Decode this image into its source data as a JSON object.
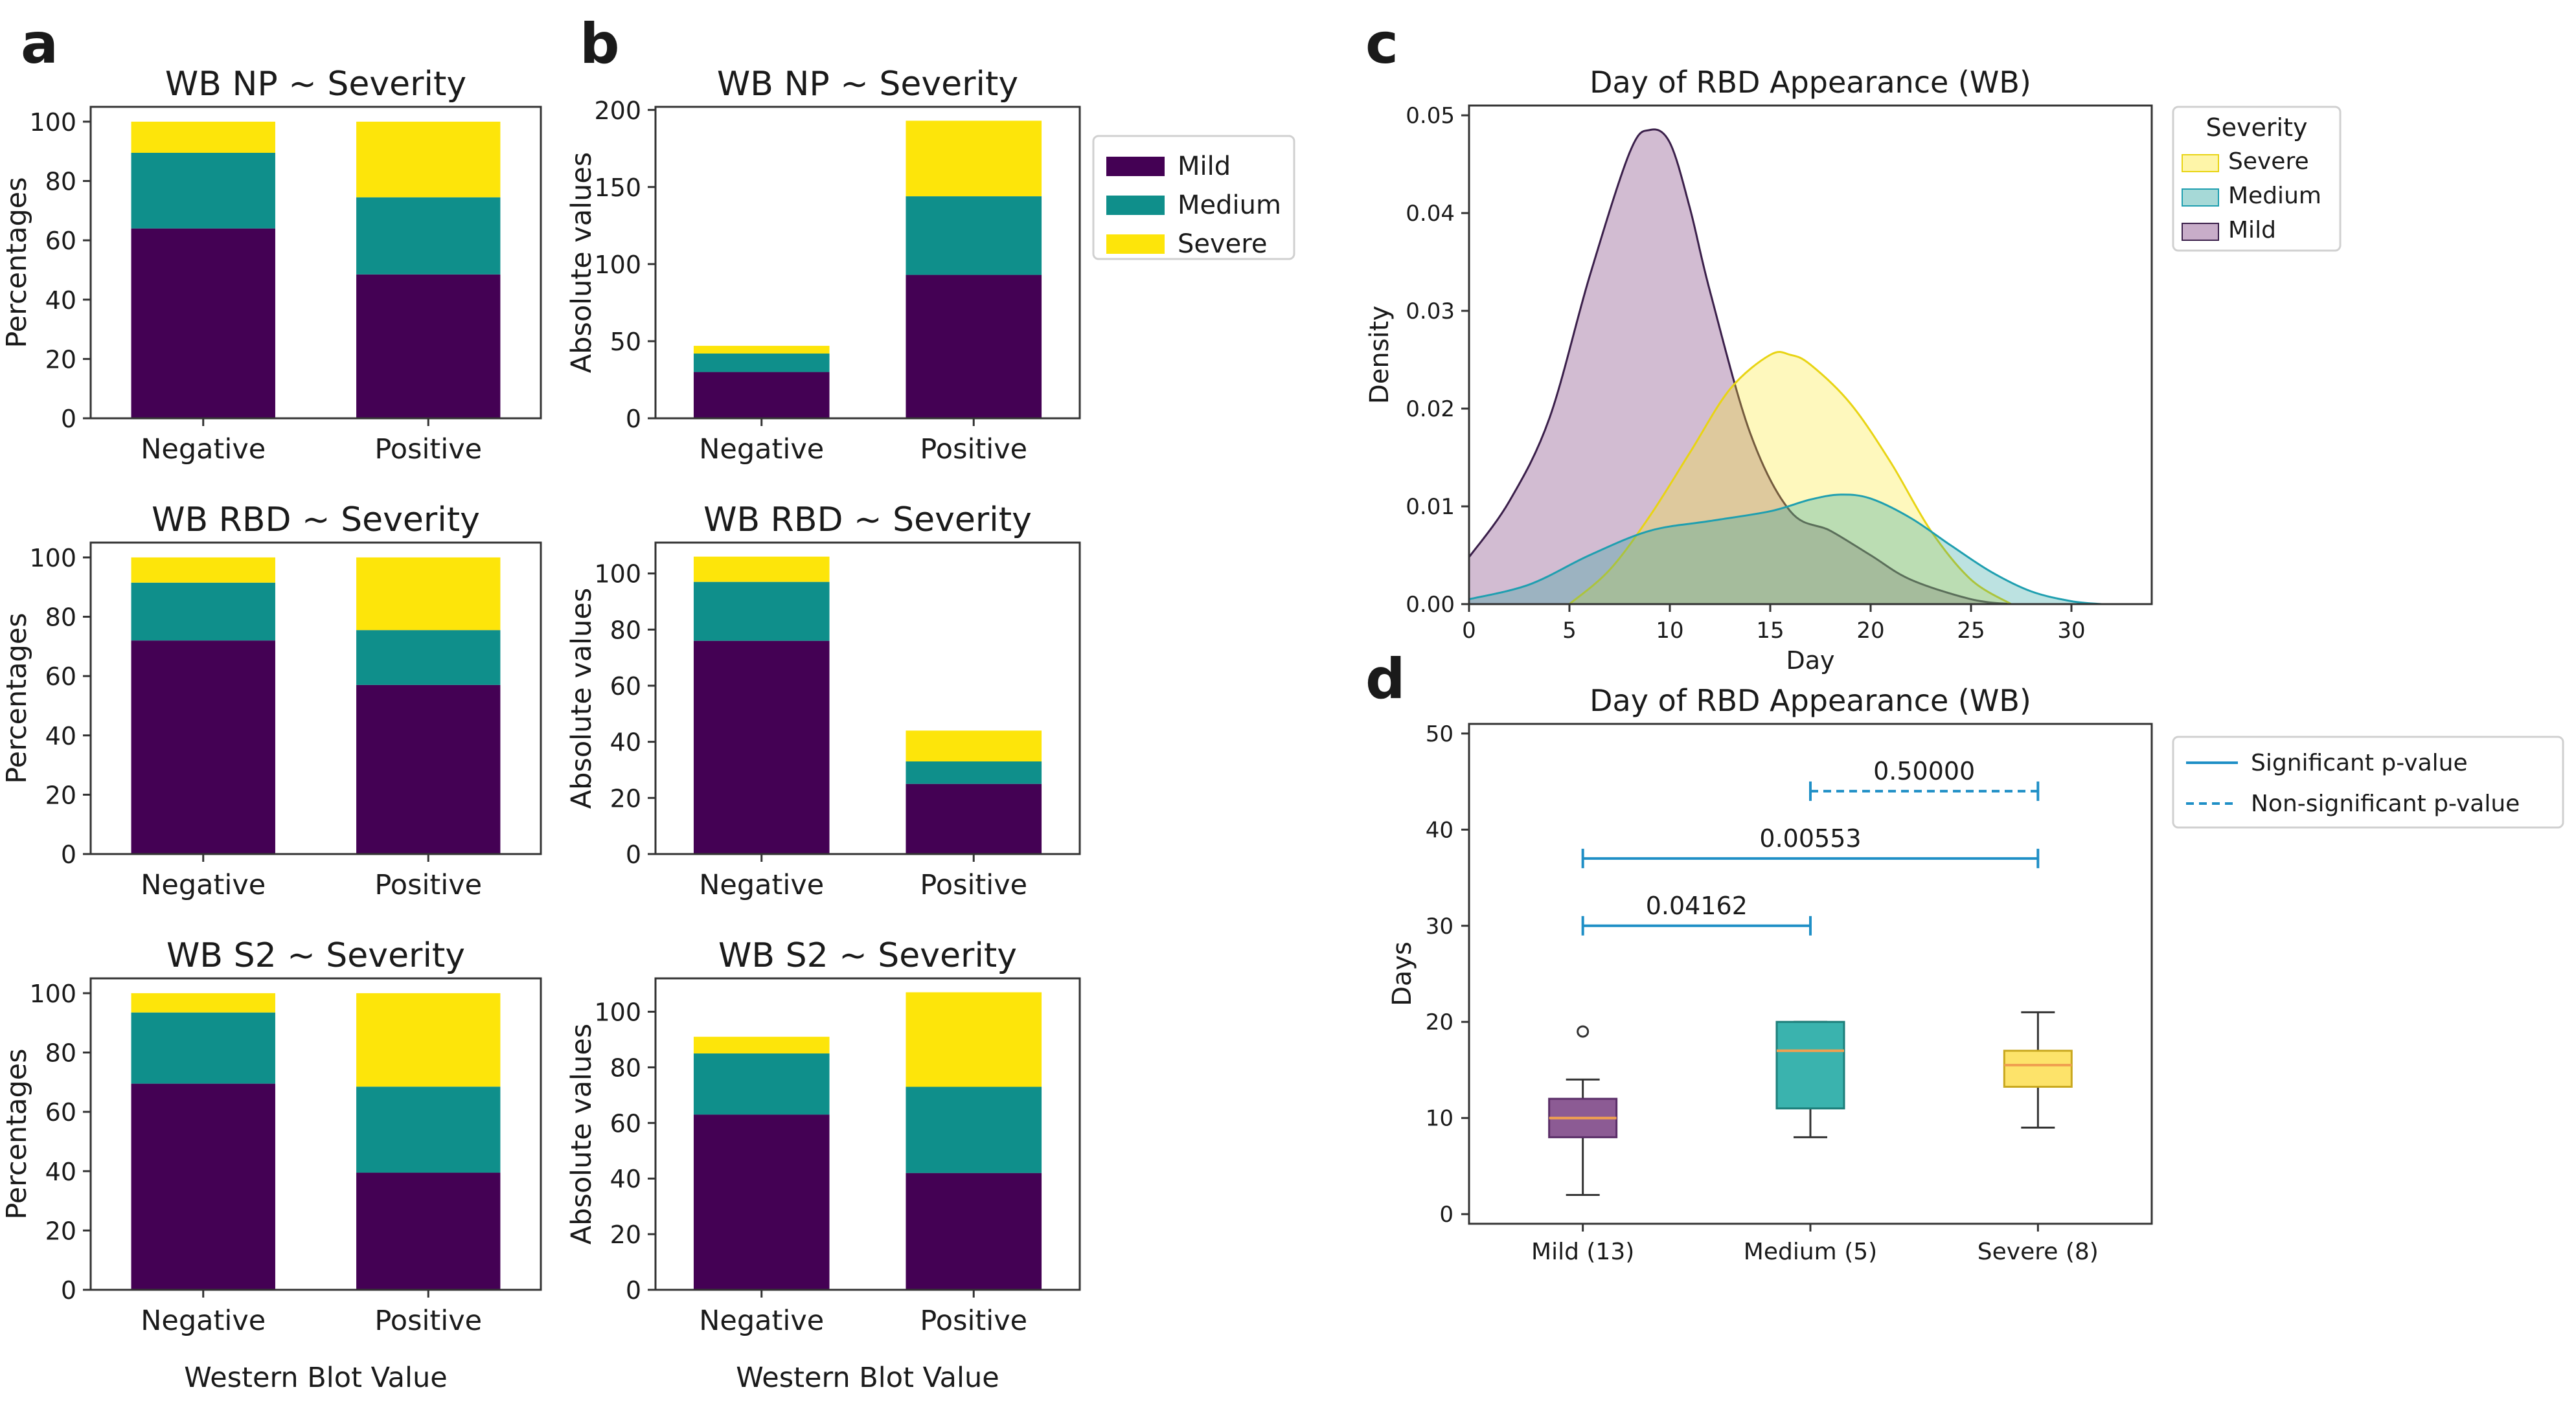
{
  "figure": {
    "panel_labels": [
      "a",
      "b",
      "c",
      "d"
    ],
    "shared_xlabel": "Western Blot Value"
  },
  "colors": {
    "mild": "#440154",
    "medium": "#0f8f8b",
    "severe": "#fde50a",
    "sig_line": "#1f8fc6",
    "median": "#f0a050",
    "axis": "#333333"
  },
  "chart_data": [
    {
      "id": "a1",
      "type": "bar",
      "stacked": true,
      "title": "WB NP ~ Severity",
      "ylabel": "Percentages",
      "xlabel": "",
      "categories": [
        "Negative",
        "Positive"
      ],
      "ylim": [
        0,
        105
      ],
      "yticks": [
        0,
        20,
        40,
        60,
        80,
        100
      ],
      "series": [
        {
          "name": "Mild",
          "values": [
            64,
            48.5
          ]
        },
        {
          "name": "Medium",
          "values": [
            25.5,
            26
          ]
        },
        {
          "name": "Severe",
          "values": [
            10.5,
            25.5
          ]
        }
      ]
    },
    {
      "id": "b1",
      "type": "bar",
      "stacked": true,
      "title": "WB NP ~ Severity",
      "ylabel": "Absolute values",
      "xlabel": "",
      "categories": [
        "Negative",
        "Positive"
      ],
      "ylim": [
        0,
        202
      ],
      "yticks": [
        0,
        50,
        100,
        150,
        200
      ],
      "series": [
        {
          "name": "Mild",
          "values": [
            30,
            93
          ]
        },
        {
          "name": "Medium",
          "values": [
            12,
            51
          ]
        },
        {
          "name": "Severe",
          "values": [
            5,
            49
          ]
        }
      ],
      "legend": {
        "placement": "outside-right",
        "labels": [
          "Mild",
          "Medium",
          "Severe"
        ]
      }
    },
    {
      "id": "a2",
      "type": "bar",
      "stacked": true,
      "title": "WB RBD ~ Severity",
      "ylabel": "Percentages",
      "xlabel": "",
      "categories": [
        "Negative",
        "Positive"
      ],
      "ylim": [
        0,
        105
      ],
      "yticks": [
        0,
        20,
        40,
        60,
        80,
        100
      ],
      "series": [
        {
          "name": "Mild",
          "values": [
            72,
            57
          ]
        },
        {
          "name": "Medium",
          "values": [
            19.5,
            18.5
          ]
        },
        {
          "name": "Severe",
          "values": [
            8.5,
            24.5
          ]
        }
      ]
    },
    {
      "id": "b2",
      "type": "bar",
      "stacked": true,
      "title": "WB RBD ~ Severity",
      "ylabel": "Absolute values",
      "xlabel": "",
      "categories": [
        "Negative",
        "Positive"
      ],
      "ylim": [
        0,
        111
      ],
      "yticks": [
        0,
        20,
        40,
        60,
        80,
        100
      ],
      "series": [
        {
          "name": "Mild",
          "values": [
            76,
            25
          ]
        },
        {
          "name": "Medium",
          "values": [
            21,
            8
          ]
        },
        {
          "name": "Severe",
          "values": [
            9,
            11
          ]
        }
      ]
    },
    {
      "id": "a3",
      "type": "bar",
      "stacked": true,
      "title": "WB S2 ~ Severity",
      "ylabel": "Percentages",
      "xlabel": "Western Blot Value",
      "categories": [
        "Negative",
        "Positive"
      ],
      "ylim": [
        0,
        105
      ],
      "yticks": [
        0,
        20,
        40,
        60,
        80,
        100
      ],
      "series": [
        {
          "name": "Mild",
          "values": [
            69.5,
            39.5
          ]
        },
        {
          "name": "Medium",
          "values": [
            24,
            29
          ]
        },
        {
          "name": "Severe",
          "values": [
            6.5,
            31.5
          ]
        }
      ]
    },
    {
      "id": "b3",
      "type": "bar",
      "stacked": true,
      "title": "WB S2 ~ Severity",
      "ylabel": "Absolute values",
      "xlabel": "Western Blot Value",
      "categories": [
        "Negative",
        "Positive"
      ],
      "ylim": [
        0,
        112
      ],
      "yticks": [
        0,
        20,
        40,
        60,
        80,
        100
      ],
      "series": [
        {
          "name": "Mild",
          "values": [
            63,
            42
          ]
        },
        {
          "name": "Medium",
          "values": [
            22,
            31
          ]
        },
        {
          "name": "Severe",
          "values": [
            6,
            34
          ]
        }
      ]
    },
    {
      "id": "c",
      "type": "area",
      "title": "Day of RBD Appearance (WB)",
      "xlabel": "Day",
      "ylabel": "Density",
      "xlim": [
        0,
        34
      ],
      "ylim": [
        0,
        0.051
      ],
      "xticks": [
        0,
        5,
        10,
        15,
        20,
        25,
        30
      ],
      "yticks": [
        0.0,
        0.01,
        0.02,
        0.03,
        0.04,
        0.05
      ],
      "ytick_labels": [
        "0.00",
        "0.01",
        "0.02",
        "0.03",
        "0.04",
        "0.05"
      ],
      "legend": {
        "title": "Severity",
        "placement": "outside-right",
        "labels": [
          "Severe",
          "Medium",
          "Mild"
        ]
      },
      "series": [
        {
          "name": "Mild",
          "x": [
            0,
            2,
            4,
            6,
            8,
            9,
            10,
            11,
            12,
            14,
            16,
            18,
            20,
            22,
            25,
            27
          ],
          "y": [
            0.0048,
            0.0105,
            0.019,
            0.0335,
            0.0462,
            0.0485,
            0.0472,
            0.0405,
            0.032,
            0.0175,
            0.0095,
            0.0075,
            0.005,
            0.0025,
            0.0005,
            0.0
          ]
        },
        {
          "name": "Severe",
          "x": [
            5,
            7,
            9,
            11,
            13,
            15,
            16,
            17,
            19,
            21,
            23,
            25,
            27
          ],
          "y": [
            0.0,
            0.0035,
            0.009,
            0.0155,
            0.022,
            0.0255,
            0.0255,
            0.0245,
            0.0205,
            0.0145,
            0.0075,
            0.0025,
            0.0
          ]
        },
        {
          "name": "Medium",
          "x": [
            0,
            3,
            6,
            9,
            12,
            15,
            17,
            18.5,
            20,
            22,
            24,
            26,
            28,
            30,
            31.5
          ],
          "y": [
            0.0005,
            0.002,
            0.005,
            0.0075,
            0.0085,
            0.0095,
            0.0107,
            0.0112,
            0.0108,
            0.0088,
            0.006,
            0.0033,
            0.0013,
            0.0003,
            0.0
          ]
        }
      ]
    },
    {
      "id": "d",
      "type": "box",
      "title": "Day of RBD Appearance (WB)",
      "xlabel": "",
      "ylabel": "Days",
      "categories": [
        "Mild (13)",
        "Medium (5)",
        "Severe (8)"
      ],
      "ylim": [
        -1,
        51
      ],
      "yticks": [
        0,
        10,
        20,
        30,
        40,
        50
      ],
      "boxes": [
        {
          "name": "Mild",
          "whislo": 2,
          "q1": 8,
          "med": 10,
          "q3": 12,
          "whishi": 14,
          "fliers": [
            19
          ]
        },
        {
          "name": "Medium",
          "whislo": 8,
          "q1": 11,
          "med": 17,
          "q3": 20,
          "whishi": 20,
          "fliers": []
        },
        {
          "name": "Severe",
          "whislo": 9,
          "q1": 13.25,
          "med": 15.5,
          "q3": 17,
          "whishi": 21,
          "fliers": []
        }
      ],
      "comparisons": [
        {
          "from": 0,
          "to": 1,
          "y": 30,
          "label": "0.04162",
          "significant": true
        },
        {
          "from": 0,
          "to": 2,
          "y": 37,
          "label": "0.00553",
          "significant": true
        },
        {
          "from": 1,
          "to": 2,
          "y": 44,
          "label": "0.50000",
          "significant": false
        }
      ],
      "legend": {
        "placement": "outside-right",
        "significant": "Significant p-value",
        "nonsignificant": "Non-significant p-value"
      }
    }
  ]
}
